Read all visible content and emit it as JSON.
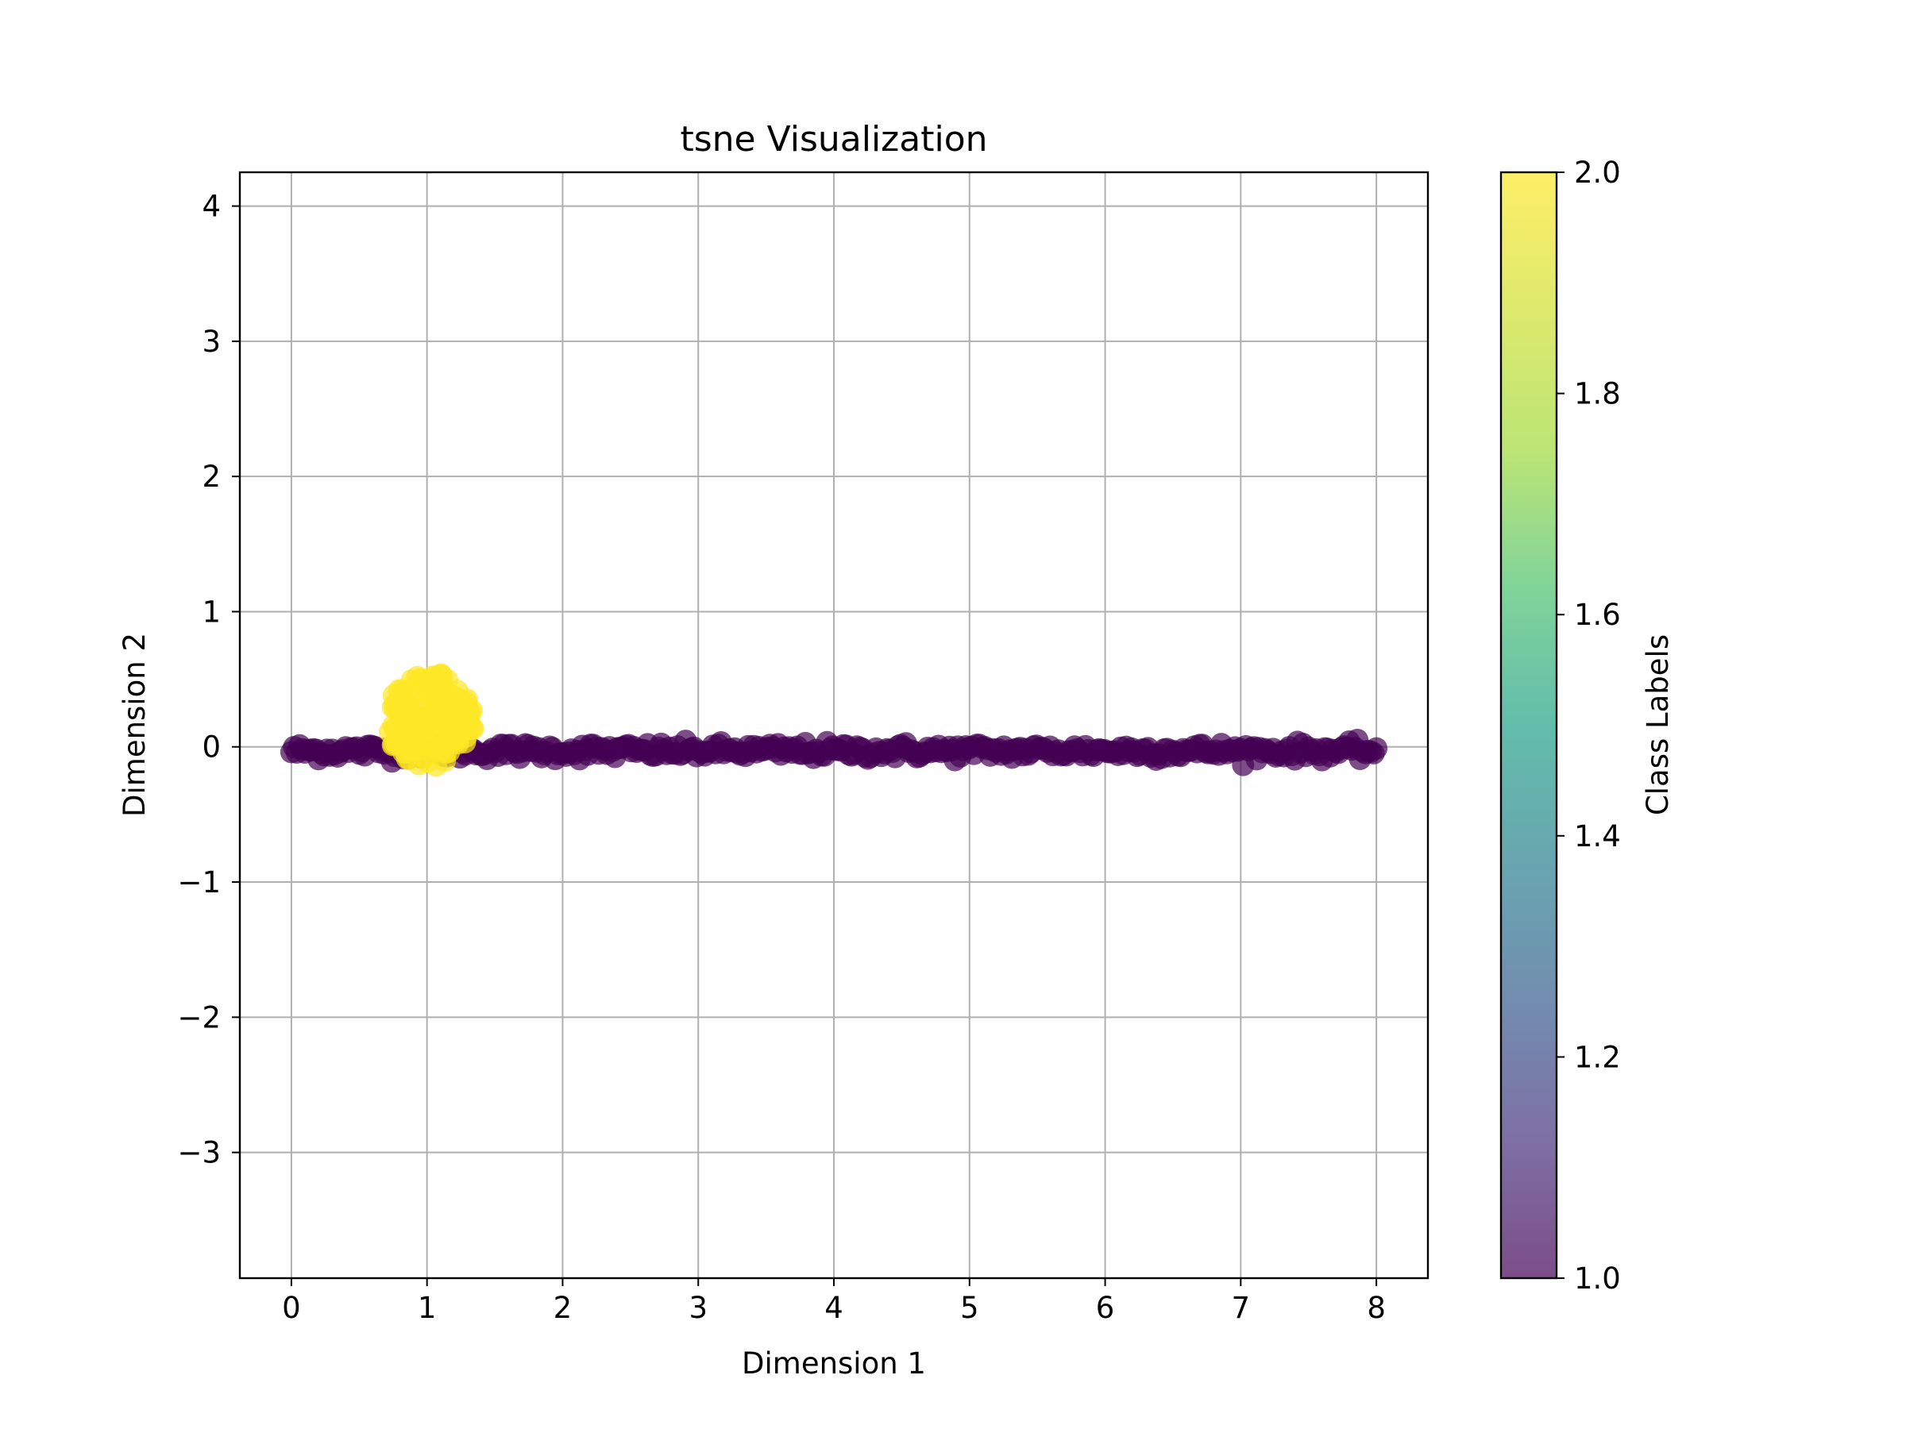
{
  "chart_data": {
    "type": "scatter",
    "title": "tsne Visualization",
    "xlabel": "Dimension 1",
    "ylabel": "Dimension 2",
    "xlim": [
      -0.38,
      8.38
    ],
    "ylim": [
      -3.93,
      4.25
    ],
    "xticks": [
      0,
      1,
      2,
      3,
      4,
      5,
      6,
      7,
      8
    ],
    "xtick_labels": [
      "0",
      "1",
      "2",
      "3",
      "4",
      "5",
      "6",
      "7",
      "8"
    ],
    "yticks": [
      4,
      3,
      2,
      1,
      0,
      -1,
      -2,
      -3
    ],
    "ytick_labels": [
      "4",
      "3",
      "2",
      "1",
      "0",
      "−1",
      "−2",
      "−3"
    ],
    "grid": true,
    "colormap": "viridis",
    "point_alpha": 0.7,
    "colorbar": {
      "label": "Class Labels",
      "range": [
        1.0,
        2.0
      ],
      "ticks": [
        2.0,
        1.8,
        1.6,
        1.4,
        1.2,
        1.0
      ],
      "tick_labels": [
        "2.0",
        "1.8",
        "1.6",
        "1.4",
        "1.2",
        "1.0"
      ]
    },
    "series": [
      {
        "class_value": 1.0,
        "color": "#440154",
        "x_range": [
          0.0,
          8.0
        ],
        "y_center": -0.03,
        "y_spread": 0.03,
        "count": 400
      },
      {
        "class_value": 2.0,
        "color": "#fde725",
        "x_center": 1.02,
        "y_center": 0.2,
        "x_spread": 0.33,
        "y_spread": 0.35,
        "count": 150
      }
    ]
  }
}
